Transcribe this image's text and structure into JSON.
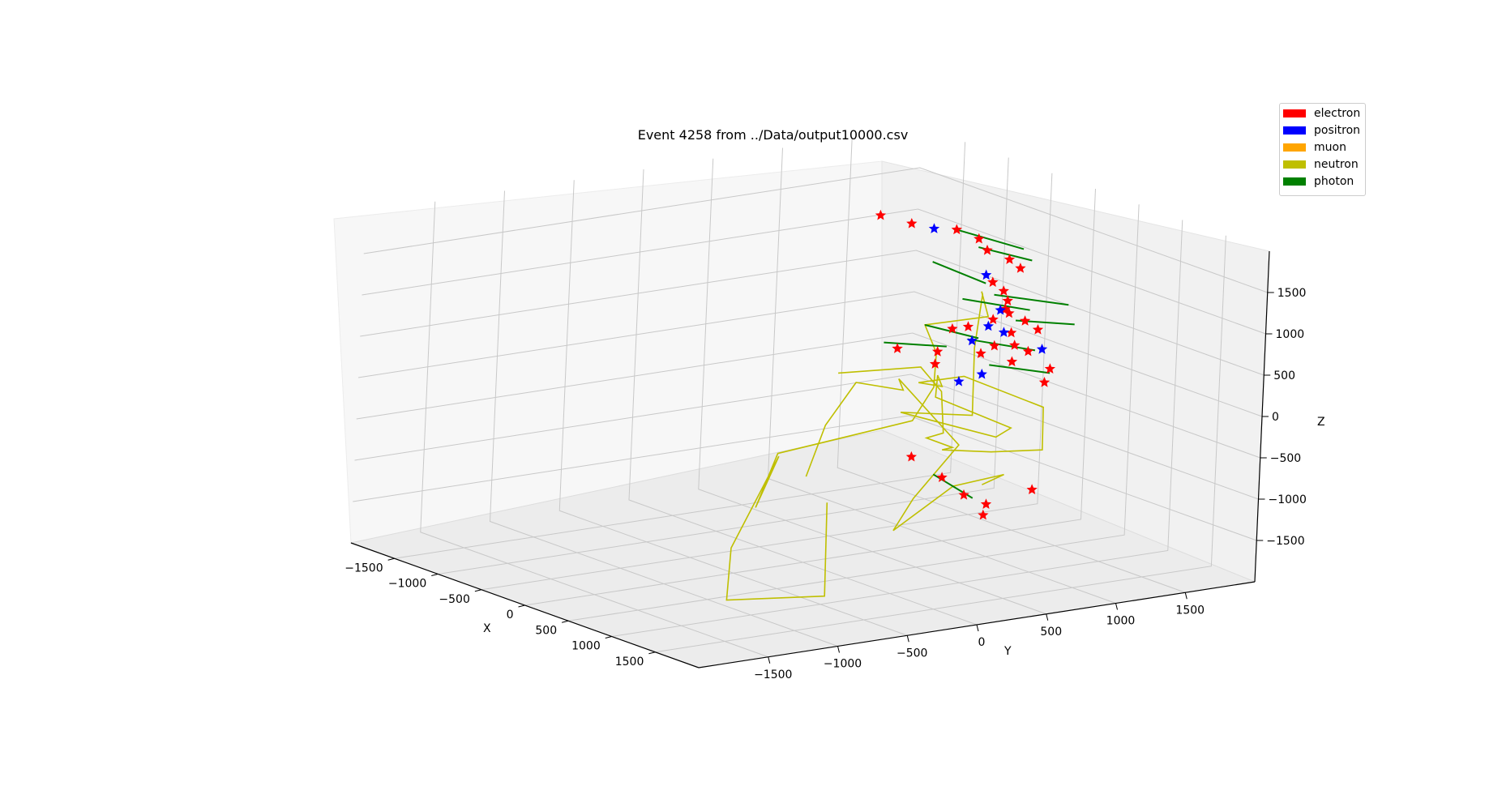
{
  "chart_data": {
    "type": "scatter",
    "projection": "3d",
    "title": "Event 4258 from ../Data/output10000.csv",
    "xlabel": "X",
    "ylabel": "Y",
    "zlabel": "Z",
    "xlim": [
      -2000,
      2000
    ],
    "ylim": [
      -2000,
      2000
    ],
    "zlim": [
      -2000,
      2000
    ],
    "x_ticks": [
      "−1500",
      "−1000",
      "−500",
      "0",
      "500",
      "1000",
      "1500"
    ],
    "y_ticks": [
      "−1500",
      "−1000",
      "−500",
      "0",
      "500",
      "1000",
      "1500"
    ],
    "z_ticks": [
      "−1500",
      "−1000",
      "−500",
      "0",
      "500",
      "1000",
      "1500"
    ],
    "grid": true,
    "legend_position": "top-right",
    "legend": [
      {
        "name": "electron",
        "color": "#ff0000"
      },
      {
        "name": "positron",
        "color": "#0000ff"
      },
      {
        "name": "muon",
        "color": "#ffa500"
      },
      {
        "name": "neutron",
        "color": "#bfbf00"
      },
      {
        "name": "photon",
        "color": "#008000"
      }
    ],
    "series": [
      {
        "name": "neutron",
        "color": "#bfbf00",
        "marker": "line",
        "path": [
          [
            1400,
            -700,
            1000
          ],
          [
            1550,
            -200,
            1000
          ],
          [
            1250,
            150,
            500
          ],
          [
            900,
            400,
            -200
          ],
          [
            400,
            600,
            -500
          ],
          [
            150,
            950,
            -800
          ],
          [
            -200,
            1100,
            -1000
          ],
          [
            200,
            1200,
            -900
          ],
          [
            700,
            1250,
            -700
          ],
          [
            300,
            1500,
            -400
          ],
          [
            -300,
            1300,
            -200
          ],
          [
            -500,
            1100,
            -300
          ],
          [
            -700,
            1400,
            -500
          ],
          [
            -600,
            1300,
            -300
          ],
          [
            -300,
            1100,
            -400
          ],
          [
            100,
            1400,
            -700
          ],
          [
            -300,
            1550,
            -1000
          ],
          [
            -1000,
            1300,
            -900
          ],
          [
            -500,
            1500,
            -800
          ],
          [
            -900,
            1750,
            -200
          ],
          [
            -600,
            1600,
            600
          ],
          [
            -300,
            1400,
            800
          ],
          [
            100,
            1200,
            700
          ],
          [
            -300,
            1000,
            500
          ],
          [
            0,
            900,
            300
          ],
          [
            300,
            700,
            50
          ],
          [
            700,
            300,
            -100
          ],
          [
            600,
            -600,
            -300
          ],
          [
            1000,
            -1000,
            -700
          ],
          [
            300,
            -400,
            -500
          ],
          [
            900,
            -1100,
            -1200
          ],
          [
            1500,
            -1500,
            -1500
          ],
          [
            1200,
            -600,
            -1800
          ],
          [
            400,
            -100,
            -1100
          ]
        ],
        "path2": [
          [
            1400,
            -900,
            -200
          ],
          [
            500,
            -200,
            -100
          ],
          [
            200,
            200,
            200
          ],
          [
            -200,
            800,
            -200
          ],
          [
            -100,
            700,
            0
          ],
          [
            300,
            900,
            -700
          ],
          [
            -500,
            1100,
            -1700
          ],
          [
            -400,
            900,
            -2000
          ],
          [
            100,
            1000,
            -1300
          ],
          [
            200,
            1300,
            -1200
          ],
          [
            -200,
            1400,
            -1500
          ]
        ]
      },
      {
        "name": "electron",
        "color": "#ff0000",
        "marker": "star",
        "points": [
          [
            -700,
            900,
            1700
          ],
          [
            -500,
            1000,
            1650
          ],
          [
            -300,
            1200,
            1600
          ],
          [
            -200,
            1300,
            1500
          ],
          [
            -100,
            1300,
            1400
          ],
          [
            0,
            1400,
            1300
          ],
          [
            50,
            1450,
            1200
          ],
          [
            -100,
            1350,
            1000
          ],
          [
            -50,
            1400,
            900
          ],
          [
            0,
            1400,
            800
          ],
          [
            100,
            1350,
            700
          ],
          [
            -100,
            1450,
            650
          ],
          [
            0,
            1300,
            600
          ],
          [
            50,
            1500,
            550
          ],
          [
            200,
            1500,
            500
          ],
          [
            -200,
            1250,
            450
          ],
          [
            -300,
            1200,
            400
          ],
          [
            -100,
            1500,
            350
          ],
          [
            100,
            1400,
            300
          ],
          [
            -50,
            1350,
            250
          ],
          [
            100,
            1500,
            200
          ],
          [
            -300,
            1100,
            150
          ],
          [
            -600,
            1000,
            100
          ],
          [
            -200,
            1350,
            100
          ],
          [
            0,
            1450,
            50
          ],
          [
            200,
            1600,
            0
          ],
          [
            -400,
            1150,
            -50
          ],
          [
            300,
            1500,
            -100
          ],
          [
            -700,
            1200,
            -1300
          ],
          [
            -500,
            1300,
            -1500
          ],
          [
            -400,
            1400,
            -1700
          ],
          [
            -300,
            1500,
            -1800
          ],
          [
            -250,
            1450,
            -1900
          ],
          [
            -100,
            1700,
            -1600
          ]
        ]
      },
      {
        "name": "positron",
        "color": "#0000ff",
        "marker": "star",
        "points": [
          [
            -400,
            1100,
            1600
          ],
          [
            -100,
            1300,
            1100
          ],
          [
            0,
            1350,
            700
          ],
          [
            -50,
            1300,
            500
          ],
          [
            50,
            1350,
            450
          ],
          [
            -150,
            1250,
            300
          ],
          [
            100,
            1600,
            200
          ],
          [
            -100,
            1300,
            -100
          ],
          [
            -200,
            1200,
            -200
          ]
        ]
      },
      {
        "name": "photon",
        "color": "#008000",
        "marker": "line",
        "segments": [
          [
            [
              -300,
              1200,
              1600
            ],
            [
              0,
              1500,
              1400
            ]
          ],
          [
            [
              -200,
              1300,
              1400
            ],
            [
              100,
              1500,
              1300
            ]
          ],
          [
            [
              -400,
              1100,
              1200
            ],
            [
              -100,
              1300,
              1000
            ]
          ],
          [
            [
              0,
              1300,
              900
            ],
            [
              300,
              1650,
              800
            ]
          ],
          [
            [
              -200,
              1200,
              800
            ],
            [
              100,
              1500,
              700
            ]
          ],
          [
            [
              -300,
              1000,
              500
            ],
            [
              0,
              1200,
              400
            ]
          ],
          [
            [
              -600,
              900,
              200
            ],
            [
              -200,
              1100,
              250
            ]
          ],
          [
            [
              100,
              1400,
              600
            ],
            [
              300,
              1700,
              550
            ]
          ],
          [
            [
              -200,
              1250,
              300
            ],
            [
              100,
              1550,
              200
            ]
          ],
          [
            [
              -100,
              1350,
              0
            ],
            [
              200,
              1600,
              -50
            ]
          ],
          [
            [
              -600,
              1300,
              -1500
            ],
            [
              -300,
              1400,
              -1700
            ]
          ]
        ]
      },
      {
        "name": "muon",
        "color": "#ffa500",
        "marker": "line",
        "points": []
      }
    ]
  }
}
